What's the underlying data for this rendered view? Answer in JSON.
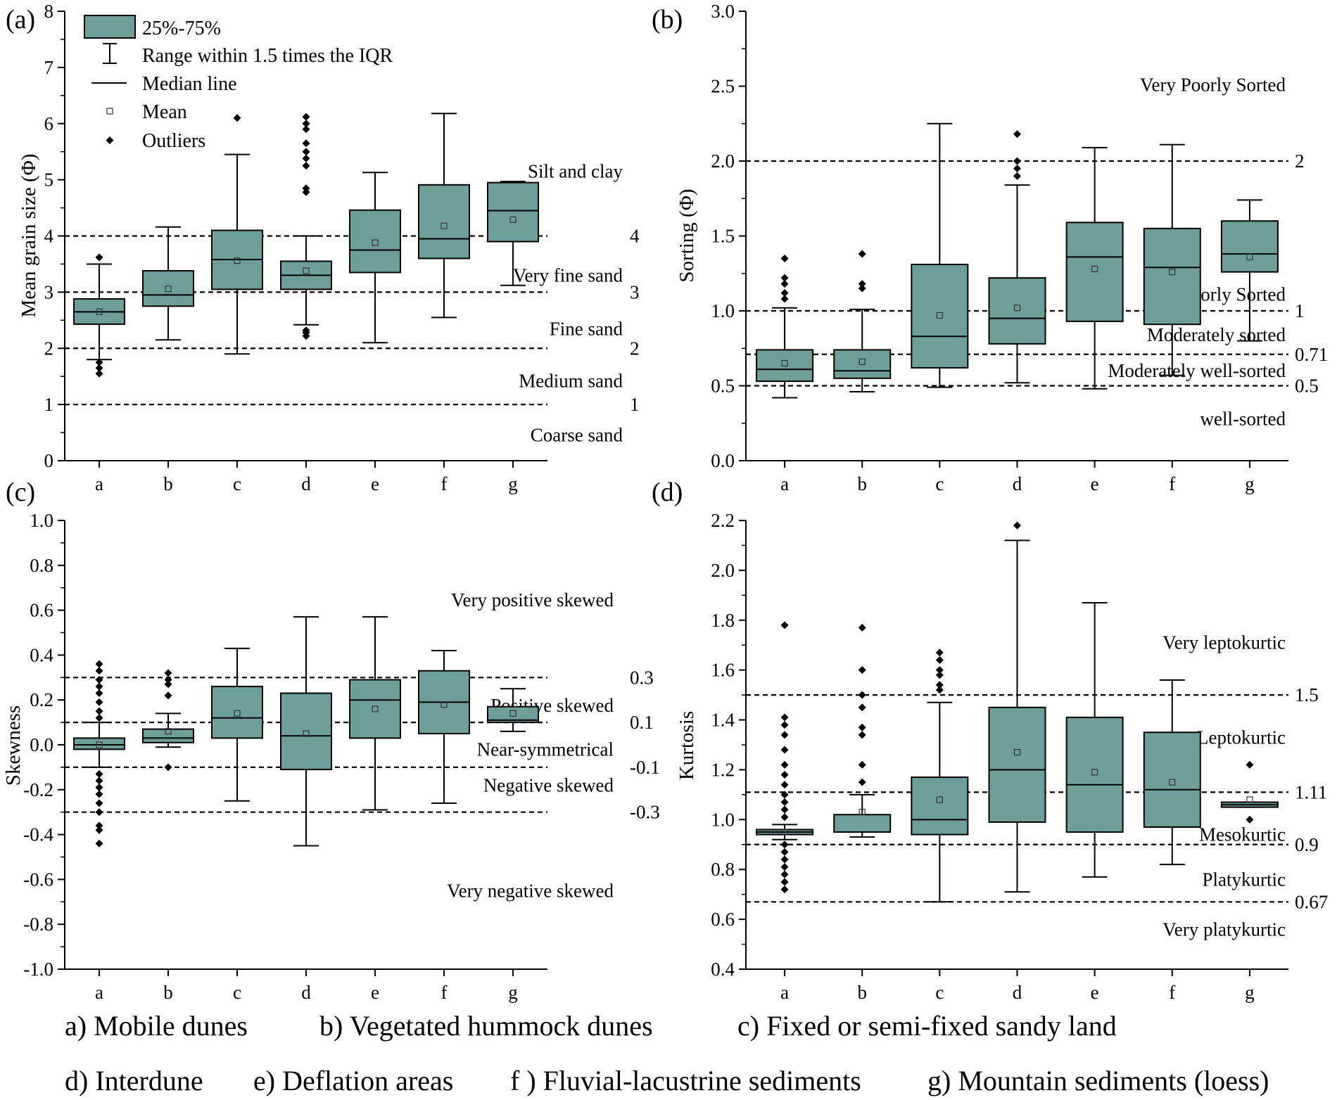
{
  "style": {
    "box_fill": "#6d9e97",
    "box_stroke": "#000000",
    "ref_line": "#000000"
  },
  "legend": {
    "box_label": "25%-75%",
    "whisker_label": "Range within 1.5 times the IQR",
    "median_label": "Median line",
    "mean_label": "Mean",
    "outlier_label": "Outliers"
  },
  "chart_data": [
    {
      "id": "a",
      "panel_label": "(a)",
      "type": "box",
      "ylabel": "Mean grain size (Φ)",
      "ylim": [
        0,
        8
      ],
      "yticks": [
        0,
        1,
        2,
        3,
        4,
        5,
        6,
        7,
        8
      ],
      "ytick_labels": [
        "0",
        "1",
        "2",
        "3",
        "4",
        "5",
        "6",
        "7",
        "8"
      ],
      "categories": [
        "a",
        "b",
        "c",
        "d",
        "e",
        "f",
        "g"
      ],
      "boxes": [
        {
          "q1": 2.43,
          "median": 2.65,
          "q3": 2.88,
          "mean": 2.65,
          "low": 1.8,
          "high": 3.5,
          "outliers": [
            1.55,
            1.65,
            1.75,
            3.62
          ]
        },
        {
          "q1": 2.75,
          "median": 2.95,
          "q3": 3.38,
          "mean": 3.06,
          "low": 2.15,
          "high": 4.16,
          "outliers": []
        },
        {
          "q1": 3.05,
          "median": 3.58,
          "q3": 4.1,
          "mean": 3.56,
          "low": 1.9,
          "high": 5.45,
          "outliers": [
            6.1
          ]
        },
        {
          "q1": 3.05,
          "median": 3.3,
          "q3": 3.55,
          "mean": 3.38,
          "low": 2.42,
          "high": 4.0,
          "outliers": [
            2.22,
            2.28,
            2.32,
            4.78,
            4.85,
            5.25,
            5.38,
            5.5,
            5.65,
            5.9,
            6.0,
            6.12
          ]
        },
        {
          "q1": 3.35,
          "median": 3.75,
          "q3": 4.46,
          "mean": 3.88,
          "low": 2.1,
          "high": 5.13,
          "outliers": []
        },
        {
          "q1": 3.6,
          "median": 3.95,
          "q3": 4.91,
          "mean": 4.18,
          "low": 2.55,
          "high": 6.18,
          "outliers": []
        },
        {
          "q1": 3.9,
          "median": 4.45,
          "q3": 4.95,
          "mean": 4.29,
          "low": 3.12,
          "high": 4.97,
          "outliers": []
        }
      ],
      "ref_lines": [
        {
          "y": 1,
          "label": "1"
        },
        {
          "y": 2,
          "label": "2"
        },
        {
          "y": 3,
          "label": "3"
        },
        {
          "y": 4,
          "label": "4"
        }
      ],
      "zone_labels": [
        {
          "y": 5.15,
          "text": "Silt and clay"
        },
        {
          "y": 3.3,
          "text": "Very fine sand"
        },
        {
          "y": 2.35,
          "text": "Fine sand"
        },
        {
          "y": 1.42,
          "text": "Medium sand"
        },
        {
          "y": 0.46,
          "text": "Coarse sand"
        }
      ]
    },
    {
      "id": "b",
      "panel_label": "(b)",
      "type": "box",
      "ylabel": "Sorting (Φ)",
      "ylim": [
        0,
        3
      ],
      "yticks": [
        0,
        0.5,
        1,
        1.5,
        2,
        2.5,
        3
      ],
      "ytick_labels": [
        "0.0",
        "0.5",
        "1.0",
        "1.5",
        "2.0",
        "2.5",
        "3.0"
      ],
      "categories": [
        "a",
        "b",
        "c",
        "d",
        "e",
        "f",
        "g"
      ],
      "boxes": [
        {
          "q1": 0.53,
          "median": 0.61,
          "q3": 0.74,
          "mean": 0.65,
          "low": 0.42,
          "high": 1.02,
          "outliers": [
            1.08,
            1.12,
            1.18,
            1.22,
            1.35
          ]
        },
        {
          "q1": 0.55,
          "median": 0.6,
          "q3": 0.74,
          "mean": 0.66,
          "low": 0.46,
          "high": 1.01,
          "outliers": [
            1.15,
            1.18,
            1.38
          ]
        },
        {
          "q1": 0.62,
          "median": 0.83,
          "q3": 1.31,
          "mean": 0.97,
          "low": 0.49,
          "high": 2.25,
          "outliers": []
        },
        {
          "q1": 0.78,
          "median": 0.95,
          "q3": 1.22,
          "mean": 1.02,
          "low": 0.52,
          "high": 1.84,
          "outliers": [
            1.9,
            1.95,
            2.0,
            2.18
          ]
        },
        {
          "q1": 0.93,
          "median": 1.36,
          "q3": 1.59,
          "mean": 1.28,
          "low": 0.48,
          "high": 2.09,
          "outliers": []
        },
        {
          "q1": 0.91,
          "median": 1.29,
          "q3": 1.55,
          "mean": 1.26,
          "low": 0.57,
          "high": 2.11,
          "outliers": []
        },
        {
          "q1": 1.26,
          "median": 1.38,
          "q3": 1.6,
          "mean": 1.36,
          "low": 0.8,
          "high": 1.74,
          "outliers": []
        }
      ],
      "ref_lines": [
        {
          "y": 0.5,
          "label": "0.5"
        },
        {
          "y": 0.71,
          "label": "0.71"
        },
        {
          "y": 1.0,
          "label": "1"
        },
        {
          "y": 2.0,
          "label": "2"
        }
      ],
      "zone_labels": [
        {
          "y": 2.51,
          "text": "Very Poorly Sorted"
        },
        {
          "y": 1.11,
          "text": "Poorly Sorted"
        },
        {
          "y": 0.84,
          "text": "Moderately sorted"
        },
        {
          "y": 0.6,
          "text": "Moderately well-sorted"
        },
        {
          "y": 0.28,
          "text": "well-sorted"
        }
      ]
    },
    {
      "id": "c",
      "panel_label": "(c)",
      "type": "box",
      "ylabel": "Skewness",
      "ylim": [
        -1,
        1
      ],
      "yticks": [
        -1,
        -0.8,
        -0.6,
        -0.4,
        -0.2,
        0,
        0.2,
        0.4,
        0.6,
        0.8,
        1
      ],
      "ytick_labels": [
        "-1.0",
        "-0.8",
        "-0.6",
        "-0.4",
        "-0.2",
        "0.0",
        "0.2",
        "0.4",
        "0.6",
        "0.8",
        "1.0"
      ],
      "categories": [
        "a",
        "b",
        "c",
        "d",
        "e",
        "f",
        "g"
      ],
      "boxes": [
        {
          "q1": -0.02,
          "median": 0.0,
          "q3": 0.03,
          "mean": 0.0,
          "low": -0.1,
          "high": 0.1,
          "outliers": [
            -0.44,
            -0.38,
            -0.36,
            -0.3,
            -0.26,
            -0.22,
            -0.19,
            -0.16,
            -0.13,
            0.12,
            0.15,
            0.19,
            0.23,
            0.26,
            0.29,
            0.33,
            0.36
          ]
        },
        {
          "q1": 0.01,
          "median": 0.03,
          "q3": 0.07,
          "mean": 0.06,
          "low": -0.01,
          "high": 0.14,
          "outliers": [
            -0.1,
            0.22,
            0.27,
            0.29,
            0.32
          ]
        },
        {
          "q1": 0.03,
          "median": 0.12,
          "q3": 0.26,
          "mean": 0.14,
          "low": -0.25,
          "high": 0.43,
          "outliers": []
        },
        {
          "q1": -0.11,
          "median": 0.04,
          "q3": 0.23,
          "mean": 0.05,
          "low": -0.45,
          "high": 0.57,
          "outliers": []
        },
        {
          "q1": 0.03,
          "median": 0.2,
          "q3": 0.29,
          "mean": 0.16,
          "low": -0.29,
          "high": 0.57,
          "outliers": []
        },
        {
          "q1": 0.05,
          "median": 0.19,
          "q3": 0.33,
          "mean": 0.18,
          "low": -0.26,
          "high": 0.42,
          "outliers": []
        },
        {
          "q1": 0.1,
          "median": 0.11,
          "q3": 0.17,
          "mean": 0.14,
          "low": 0.06,
          "high": 0.25,
          "outliers": []
        }
      ],
      "ref_lines": [
        {
          "y": -0.3,
          "label": "-0.3"
        },
        {
          "y": -0.1,
          "label": "-0.1"
        },
        {
          "y": 0.1,
          "label": "0.1"
        },
        {
          "y": 0.3,
          "label": "0.3"
        }
      ],
      "zone_labels": [
        {
          "y": 0.645,
          "text": "Very positive skewed"
        },
        {
          "y": 0.175,
          "text": "Positive skewed"
        },
        {
          "y": -0.02,
          "text": "Near-symmetrical"
        },
        {
          "y": -0.18,
          "text": "Negative skewed"
        },
        {
          "y": -0.65,
          "text": "Very negative skewed"
        }
      ]
    },
    {
      "id": "d",
      "panel_label": "(d)",
      "type": "box",
      "ylabel": "Kurtosis",
      "ylim": [
        0.4,
        2.2
      ],
      "yticks": [
        0.4,
        0.6,
        0.8,
        1.0,
        1.2,
        1.4,
        1.6,
        1.8,
        2.0,
        2.2
      ],
      "ytick_labels": [
        "0.4",
        "0.6",
        "0.8",
        "1.0",
        "1.2",
        "1.4",
        "1.6",
        "1.8",
        "2.0",
        "2.2"
      ],
      "categories": [
        "a",
        "b",
        "c",
        "d",
        "e",
        "f",
        "g"
      ],
      "boxes": [
        {
          "q1": 0.94,
          "median": 0.95,
          "q3": 0.96,
          "mean": 0.95,
          "low": 0.92,
          "high": 0.98,
          "outliers": [
            0.72,
            0.75,
            0.78,
            0.81,
            0.84,
            0.87,
            0.9,
            1.01,
            1.04,
            1.07,
            1.1,
            1.14,
            1.18,
            1.22,
            1.28,
            1.34,
            1.38,
            1.41,
            1.78
          ]
        },
        {
          "q1": 0.95,
          "median": 0.95,
          "q3": 1.02,
          "mean": 1.03,
          "low": 0.93,
          "high": 1.1,
          "outliers": [
            1.15,
            1.22,
            1.34,
            1.37,
            1.45,
            1.5,
            1.6,
            1.77
          ]
        },
        {
          "q1": 0.94,
          "median": 1.0,
          "q3": 1.17,
          "mean": 1.08,
          "low": 0.67,
          "high": 1.47,
          "outliers": [
            1.52,
            1.54,
            1.58,
            1.6,
            1.64,
            1.67
          ]
        },
        {
          "q1": 0.99,
          "median": 1.2,
          "q3": 1.45,
          "mean": 1.27,
          "low": 0.71,
          "high": 2.12,
          "outliers": [
            2.18
          ]
        },
        {
          "q1": 0.95,
          "median": 1.14,
          "q3": 1.41,
          "mean": 1.19,
          "low": 0.77,
          "high": 1.87,
          "outliers": []
        },
        {
          "q1": 0.97,
          "median": 1.12,
          "q3": 1.35,
          "mean": 1.15,
          "low": 0.82,
          "high": 1.56,
          "outliers": []
        },
        {
          "q1": 1.05,
          "median": 1.06,
          "q3": 1.07,
          "mean": 1.08,
          "low": 1.05,
          "high": 1.07,
          "outliers": [
            1.0,
            1.22
          ]
        }
      ],
      "ref_lines": [
        {
          "y": 0.67,
          "label": "0.67"
        },
        {
          "y": 0.9,
          "label": "0.9"
        },
        {
          "y": 1.11,
          "label": "1.11"
        },
        {
          "y": 1.5,
          "label": "1.5"
        }
      ],
      "zone_labels": [
        {
          "y": 1.71,
          "text": "Very leptokurtic"
        },
        {
          "y": 1.33,
          "text": "Leptokurtic"
        },
        {
          "y": 0.94,
          "text": "Mesokurtic"
        },
        {
          "y": 0.76,
          "text": "Platykurtic"
        },
        {
          "y": 0.56,
          "text": "Very platykurtic"
        }
      ]
    }
  ],
  "captions": {
    "a": "a) Mobile dunes",
    "b": "b) Vegetated hummock dunes",
    "c": "c) Fixed or semi-fixed sandy land",
    "d": "d) Interdune",
    "e": "e) Deflation areas",
    "f": "f ) Fluvial-lacustrine sediments",
    "g": "g) Mountain sediments (loess)"
  }
}
